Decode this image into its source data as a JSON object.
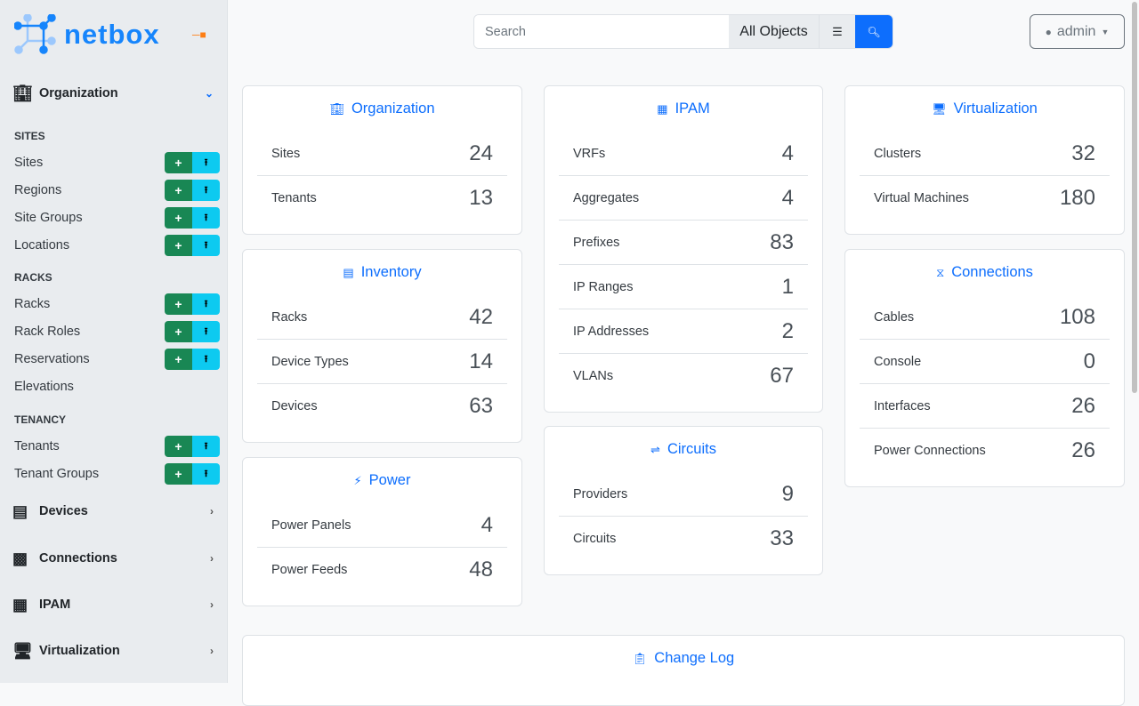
{
  "brand": "netbox",
  "sidebar": {
    "sections": [
      {
        "label": "Organization",
        "icon": "building-icon",
        "expanded": true
      },
      {
        "label": "Devices",
        "icon": "server-icon"
      },
      {
        "label": "Connections",
        "icon": "ethernet-icon"
      },
      {
        "label": "IPAM",
        "icon": "counter-icon"
      },
      {
        "label": "Virtualization",
        "icon": "monitor-icon"
      }
    ],
    "groups": [
      {
        "label": "SITES",
        "items": [
          {
            "label": "Sites",
            "btns": true
          },
          {
            "label": "Regions",
            "btns": true
          },
          {
            "label": "Site Groups",
            "btns": true
          },
          {
            "label": "Locations",
            "btns": true
          }
        ]
      },
      {
        "label": "RACKS",
        "items": [
          {
            "label": "Racks",
            "btns": true
          },
          {
            "label": "Rack Roles",
            "btns": true
          },
          {
            "label": "Reservations",
            "btns": true
          },
          {
            "label": "Elevations",
            "btns": false
          }
        ]
      },
      {
        "label": "TENANCY",
        "items": [
          {
            "label": "Tenants",
            "btns": true
          },
          {
            "label": "Tenant Groups",
            "btns": true
          }
        ]
      }
    ]
  },
  "search": {
    "placeholder": "Search",
    "scope": "All Objects"
  },
  "user": {
    "label": "admin"
  },
  "cards": [
    {
      "title": "Organization",
      "icon": "building-icon",
      "rows": [
        [
          "Sites",
          "24"
        ],
        [
          "Tenants",
          "13"
        ]
      ]
    },
    {
      "title": "Inventory",
      "icon": "server-icon",
      "rows": [
        [
          "Racks",
          "42"
        ],
        [
          "Device Types",
          "14"
        ],
        [
          "Devices",
          "63"
        ]
      ]
    },
    {
      "title": "Power",
      "icon": "flash-icon",
      "rows": [
        [
          "Power Panels",
          "4"
        ],
        [
          "Power Feeds",
          "48"
        ]
      ]
    },
    {
      "title": "IPAM",
      "icon": "counter-icon",
      "rows": [
        [
          "VRFs",
          "4"
        ],
        [
          "Aggregates",
          "4"
        ],
        [
          "Prefixes",
          "83"
        ],
        [
          "IP Ranges",
          "1"
        ],
        [
          "IP Addresses",
          "2"
        ],
        [
          "VLANs",
          "67"
        ]
      ]
    },
    {
      "title": "Circuits",
      "icon": "transit-connection-icon",
      "rows": [
        [
          "Providers",
          "9"
        ],
        [
          "Circuits",
          "33"
        ]
      ]
    },
    {
      "title": "Virtualization",
      "icon": "monitor-icon",
      "rows": [
        [
          "Clusters",
          "32"
        ],
        [
          "Virtual Machines",
          "180"
        ]
      ]
    },
    {
      "title": "Connections",
      "icon": "cable-icon",
      "rows": [
        [
          "Cables",
          "108"
        ],
        [
          "Console",
          "0"
        ],
        [
          "Interfaces",
          "26"
        ],
        [
          "Power Connections",
          "26"
        ]
      ]
    },
    {
      "title": "Change Log",
      "icon": "clipboard-clock-icon",
      "rows": []
    }
  ],
  "colors": {
    "primary": "#0d6efd",
    "add": "#198754",
    "import": "#0dcaf0"
  }
}
